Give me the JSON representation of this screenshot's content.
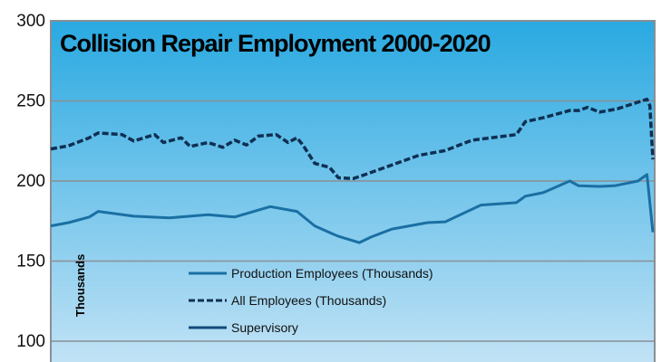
{
  "chart_data": {
    "type": "line",
    "title": "Collision Repair Employment 2000-2020",
    "xlabel": "",
    "ylabel": "Thousands",
    "xlim": [
      2000,
      2020.3
    ],
    "ylim": [
      100,
      300
    ],
    "yticks": [
      "300",
      "250",
      "200",
      "150",
      "100"
    ],
    "grid": true,
    "legend_position": "bottom-left",
    "colors": {
      "background_top": "#29a9e1",
      "background_bottom": "#c6e4f6",
      "production": "#1a6fa3",
      "all": "#0f2f52",
      "supervisory": "#134a78",
      "grid": "#8a8f95"
    },
    "series": [
      {
        "name": "Production Employees (Thousands)",
        "style": "solid",
        "x": [
          2000.0,
          2000.6,
          2001.3,
          2001.6,
          2002.8,
          2004.0,
          2005.3,
          2006.2,
          2007.4,
          2008.3,
          2008.9,
          2009.5,
          2009.7,
          2010.4,
          2010.8,
          2011.5,
          2012.7,
          2013.3,
          2014.5,
          2015.7,
          2016.0,
          2016.6,
          2017.5,
          2017.8,
          2018.5,
          2019.0,
          2019.8,
          2020.1,
          2020.3
        ],
        "values": [
          172,
          174,
          177.5,
          181,
          178,
          177,
          179,
          177.5,
          184,
          181,
          172,
          167,
          165.5,
          161.5,
          165,
          170,
          174,
          174.5,
          185,
          186.5,
          190.5,
          192.7,
          200,
          197,
          196.6,
          197,
          200,
          204,
          168
        ]
      },
      {
        "name": "All Employees (Thousands)",
        "style": "dashed",
        "x": [
          2000.0,
          2000.6,
          2001.3,
          2001.6,
          2002.4,
          2002.8,
          2003.5,
          2003.8,
          2004.4,
          2004.7,
          2005.3,
          2005.8,
          2006.2,
          2006.6,
          2007.0,
          2007.6,
          2008.0,
          2008.3,
          2008.5,
          2008.9,
          2009.4,
          2009.7,
          2010.2,
          2010.6,
          2011.5,
          2012.4,
          2013.3,
          2014.2,
          2015.7,
          2016.0,
          2016.6,
          2017.5,
          2017.8,
          2018.1,
          2018.5,
          2019.1,
          2020.1,
          2020.2,
          2020.3
        ],
        "values": [
          220,
          222,
          227,
          230,
          229,
          225,
          229,
          224,
          227,
          221.5,
          224,
          221,
          225.5,
          222.5,
          228,
          229,
          224,
          227,
          222.5,
          211,
          208.5,
          202,
          201.5,
          204,
          210,
          216,
          219,
          225.5,
          229,
          237,
          239.5,
          244,
          244,
          246,
          243,
          245,
          251,
          247,
          213.5
        ]
      },
      {
        "name": "Supervisory",
        "style": "solid",
        "x": [],
        "values": []
      }
    ]
  }
}
